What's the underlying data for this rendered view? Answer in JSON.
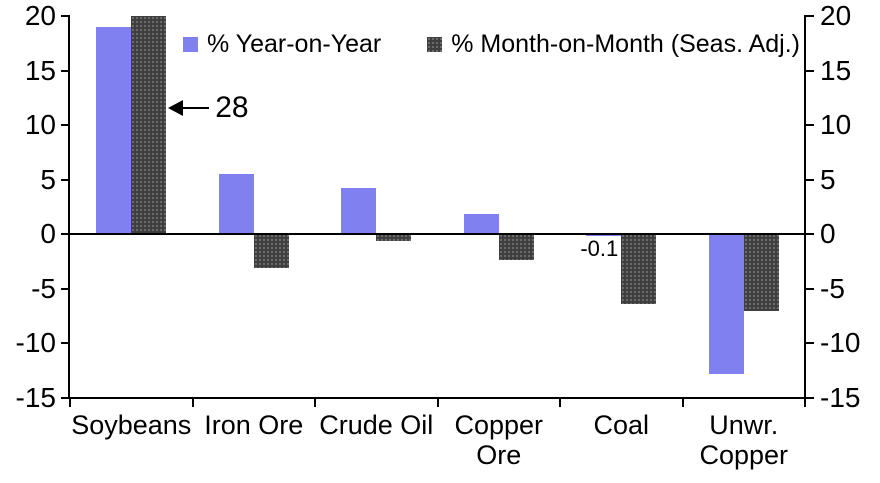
{
  "chart_data": {
    "type": "bar",
    "categories": [
      "Soybeans",
      "Iron Ore",
      "Crude Oil",
      "Copper\nOre",
      "Coal",
      "Unwr.\nCopper"
    ],
    "series": [
      {
        "name": "% Year-on-Year",
        "color": "#8080F0",
        "values": [
          19.0,
          5.5,
          4.2,
          1.9,
          -0.1,
          -12.8
        ]
      },
      {
        "name": "% Month-on-Month (Seas. Adj.)",
        "color": "#3E3E3E",
        "pattern": "dotted",
        "values": [
          28,
          -3.1,
          -0.6,
          -2.4,
          -6.4,
          -7.0
        ]
      }
    ],
    "ylim": [
      -15,
      20
    ],
    "ytick_step": 5,
    "clip_max": 20,
    "grid": false,
    "legend_position": "top-center",
    "axis_sides": "both",
    "yticks_left": [
      "20",
      "15",
      "10",
      "5",
      "0",
      "-5",
      "-10",
      "-15"
    ],
    "yticks_right": [
      "20",
      "15",
      "10",
      "5",
      "0",
      "-5",
      "-10",
      "-15"
    ],
    "annotations": [
      {
        "text": "28",
        "kind": "arrow-left",
        "series": 1,
        "category": 0,
        "note": "actual value of bar clipped at axis max"
      },
      {
        "text": "-0.1",
        "kind": "label",
        "series": 0,
        "category": 4
      }
    ]
  }
}
